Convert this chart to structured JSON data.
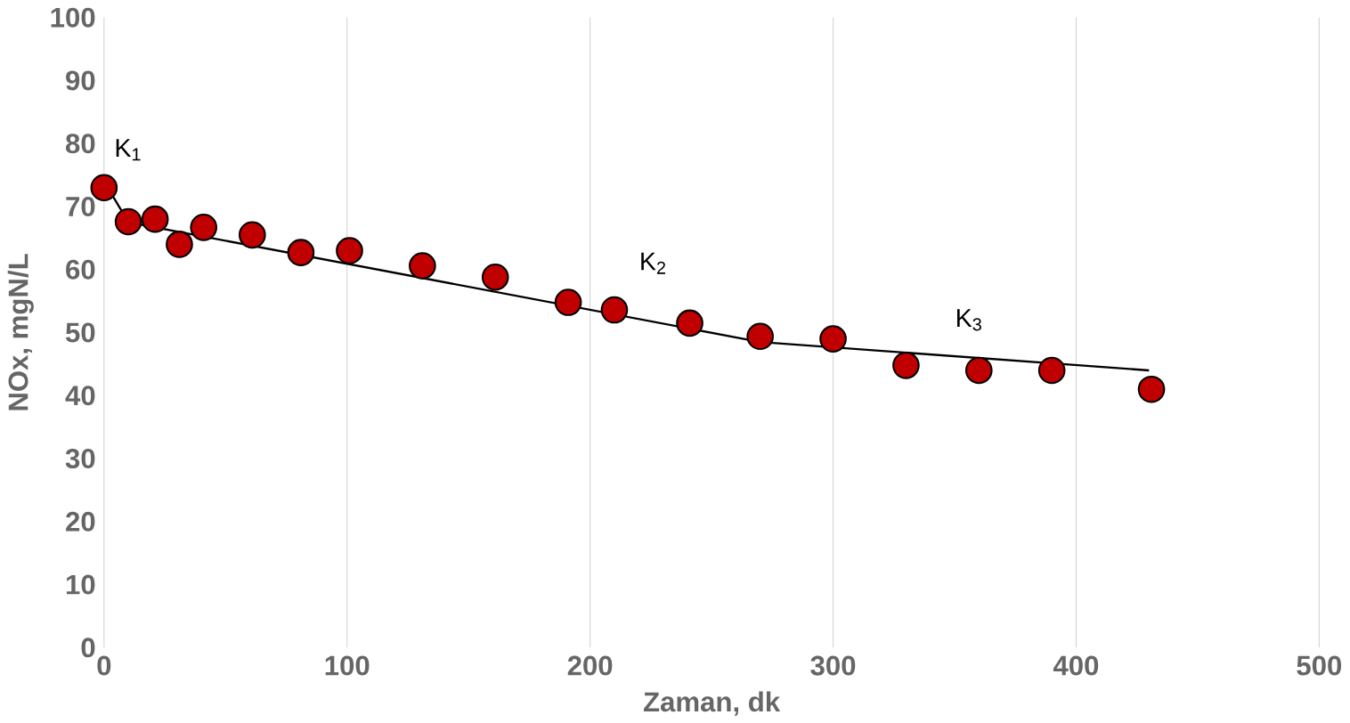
{
  "chart_data": {
    "type": "scatter",
    "xlabel": "Zaman, dk",
    "ylabel": "NOx,  mgN/L",
    "xlim": [
      0,
      500
    ],
    "ylim": [
      0,
      100
    ],
    "xticks": [
      0,
      100,
      200,
      300,
      400,
      500
    ],
    "yticks": [
      0,
      10,
      20,
      30,
      40,
      50,
      60,
      70,
      80,
      90,
      100
    ],
    "grid": "x",
    "series": [
      {
        "color": "#c00000",
        "marker": "circle",
        "x": [
          0,
          10,
          21,
          31,
          41,
          61,
          81,
          101,
          131,
          161,
          191,
          210,
          241,
          270,
          300,
          330,
          360,
          390,
          431
        ],
        "values": [
          73,
          67.6,
          68,
          64,
          66.7,
          65.5,
          62.7,
          63,
          60.6,
          58.8,
          54.8,
          53.6,
          51.5,
          49.4,
          49,
          44.8,
          44,
          44,
          41
        ]
      },
      {
        "type": "line",
        "color": "#000000",
        "marker": "none",
        "x": [
          0,
          10,
          270,
          430
        ],
        "values": [
          74,
          67.5,
          48.5,
          44
        ]
      }
    ],
    "annotations": [
      "K$_{1}$",
      "K$_{2}$",
      "K$_{3}$"
    ]
  }
}
